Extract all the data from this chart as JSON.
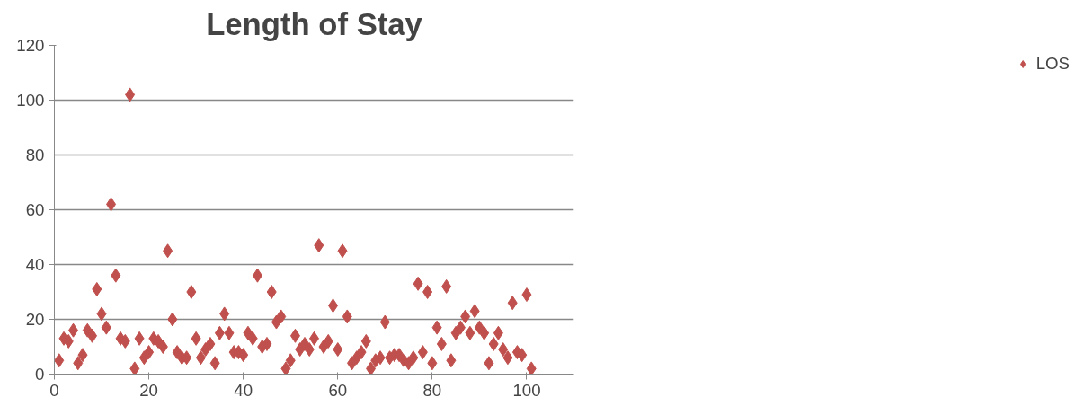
{
  "chart_data": {
    "type": "scatter",
    "title": "Length of Stay",
    "x": [
      1,
      2,
      3,
      4,
      5,
      6,
      7,
      8,
      9,
      10,
      11,
      12,
      13,
      14,
      15,
      16,
      17,
      18,
      19,
      20,
      21,
      22,
      23,
      24,
      25,
      26,
      27,
      28,
      29,
      30,
      31,
      32,
      33,
      34,
      35,
      36,
      37,
      38,
      39,
      40,
      41,
      42,
      43,
      44,
      45,
      46,
      47,
      48,
      49,
      50,
      51,
      52,
      53,
      54,
      55,
      56,
      57,
      58,
      59,
      60,
      61,
      62,
      63,
      64,
      65,
      66,
      67,
      68,
      69,
      70,
      71,
      72,
      73,
      74,
      75,
      76,
      77,
      78,
      79,
      80,
      81,
      82,
      83,
      84,
      85,
      86,
      87,
      88,
      89,
      90,
      91,
      92,
      93,
      94,
      95,
      96,
      97,
      98,
      99,
      100,
      101
    ],
    "series": [
      {
        "name": "LOS",
        "color": "#c0504d",
        "values": [
          5,
          13,
          12,
          16,
          4,
          7,
          16,
          14,
          31,
          22,
          17,
          62,
          36,
          13,
          12,
          102,
          2,
          13,
          6,
          8,
          13,
          12,
          10,
          45,
          20,
          8,
          6,
          6,
          30,
          13,
          6,
          9,
          11,
          4,
          15,
          22,
          15,
          8,
          8,
          7,
          15,
          13,
          36,
          10,
          11,
          30,
          19,
          21,
          2,
          5,
          14,
          9,
          11,
          9,
          13,
          47,
          10,
          12,
          25,
          9,
          45,
          21,
          4,
          6,
          8,
          12,
          2,
          5,
          6,
          19,
          6,
          7,
          7,
          5,
          4,
          6,
          33,
          8,
          30,
          4,
          17,
          11,
          32,
          5,
          15,
          17,
          21,
          15,
          23,
          17,
          15,
          4,
          11,
          15,
          9,
          6,
          26,
          8,
          7,
          29,
          2
        ]
      }
    ],
    "xlim": [
      0,
      110
    ],
    "xticks": [
      0,
      20,
      40,
      60,
      80,
      100
    ],
    "ylim": [
      0,
      120
    ],
    "yticks": [
      0,
      20,
      40,
      60,
      80,
      100,
      120
    ],
    "grid": "y",
    "legend": "right",
    "marker": "diamond"
  }
}
